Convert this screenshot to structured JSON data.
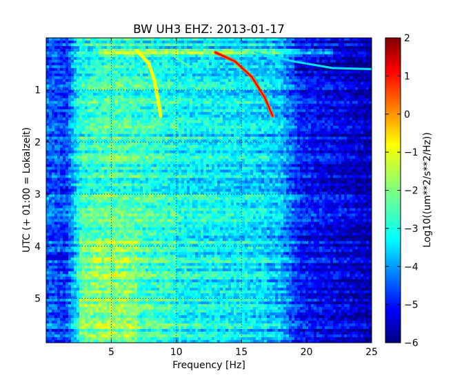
{
  "chart_data": {
    "type": "heatmap",
    "title": "BW UH3 EHZ: 2013-01-17",
    "xlabel": "Frequency [Hz]",
    "ylabel": "UTC (+ 01:00 = Lokalzeit)",
    "xlim": [
      0.0,
      25.0
    ],
    "ylim": [
      5.85,
      0.0
    ],
    "y_inverted": true,
    "xticks": [
      5,
      10,
      15,
      20,
      25
    ],
    "yticks": [
      1,
      2,
      3,
      4,
      5
    ],
    "grid": true,
    "colormap": "jet",
    "colorbar": {
      "label": "Log10((um**2/s**2/Hz))",
      "range": [
        -6,
        2
      ],
      "ticks": [
        -6,
        -5,
        -4,
        -3,
        -2,
        -1,
        0,
        1,
        2
      ]
    },
    "features": {
      "background_by_frequency": [
        {
          "x": 0.0,
          "level": -4.2
        },
        {
          "x": 1.5,
          "level": -4.6
        },
        {
          "x": 2.5,
          "level": -2.9
        },
        {
          "x": 5.0,
          "level": -2.6
        },
        {
          "x": 10.0,
          "level": -3.0
        },
        {
          "x": 15.0,
          "level": -3.2
        },
        {
          "x": 18.0,
          "level": -3.5
        },
        {
          "x": 19.5,
          "level": -4.8
        },
        {
          "x": 25.0,
          "level": -5.6
        }
      ],
      "chirp_lines": [
        {
          "points": [
            [
              7.0,
              0.25
            ],
            [
              7.9,
              0.5
            ],
            [
              8.3,
              0.8
            ],
            [
              8.6,
              1.2
            ],
            [
              8.8,
              1.5
            ]
          ],
          "level": -1.0
        },
        {
          "points": [
            [
              13.0,
              0.28
            ],
            [
              14.5,
              0.45
            ],
            [
              15.8,
              0.75
            ],
            [
              16.8,
              1.15
            ],
            [
              17.4,
              1.5
            ]
          ],
          "level": 0.2
        },
        {
          "points": [
            [
              9.5,
              0.3
            ],
            [
              11.0,
              0.55
            ]
          ],
          "level": -2.3
        },
        {
          "points": [
            [
              16.0,
              0.28
            ],
            [
              19.0,
              0.45
            ],
            [
              22.0,
              0.58
            ],
            [
              25.0,
              0.6
            ]
          ],
          "level": -3.2
        }
      ],
      "bright_band_y": 0.28,
      "dark_segment": {
        "x": [
          0.0,
          1.6
        ],
        "y": 4.22,
        "level": -5.3
      }
    }
  }
}
